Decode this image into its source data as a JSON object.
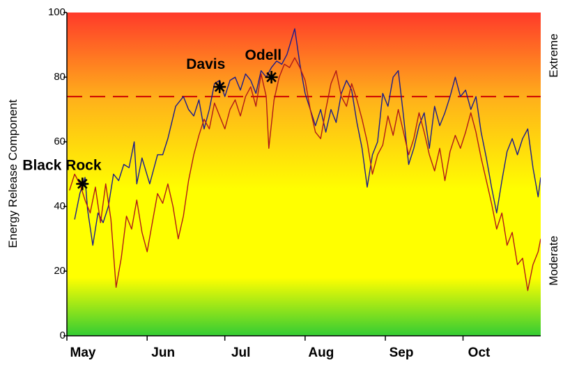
{
  "chart_data": {
    "type": "line",
    "ylabel": "Energy Release Component",
    "ylim": [
      0,
      100
    ],
    "yticks": [
      0,
      20,
      40,
      60,
      80,
      100
    ],
    "xlim": [
      "2000-05-01",
      "2000-10-31"
    ],
    "months": [
      {
        "label": "May",
        "date": "2000-05-01"
      },
      {
        "label": "Jun",
        "date": "2000-06-01"
      },
      {
        "label": "Jul",
        "date": "2000-07-01"
      },
      {
        "label": "Aug",
        "date": "2000-08-01"
      },
      {
        "label": "Sep",
        "date": "2000-09-01"
      },
      {
        "label": "Oct",
        "date": "2000-10-01"
      }
    ],
    "right_labels": {
      "top": "Extreme",
      "bottom": "Moderate"
    },
    "reference_line": {
      "y": 74,
      "color": "#cc0000",
      "style": "dashed"
    },
    "background_gradient": [
      "#ff3a2a",
      "#ffb21a",
      "#ffff00",
      "#ffff00",
      "#33cc33"
    ],
    "annotations": [
      {
        "label": "Black Rock",
        "x": "2000-05-07",
        "y": 47
      },
      {
        "label": "Davis",
        "x": "2000-06-29",
        "y": 77
      },
      {
        "label": "Odell",
        "x": "2000-07-19",
        "y": 80
      }
    ],
    "series": [
      {
        "color": "#1a1a8c",
        "points": [
          [
            "2000-05-04",
            36
          ],
          [
            "2000-05-06",
            44
          ],
          [
            "2000-05-08",
            49
          ],
          [
            "2000-05-09",
            39
          ],
          [
            "2000-05-11",
            28
          ],
          [
            "2000-05-13",
            38
          ],
          [
            "2000-05-15",
            35
          ],
          [
            "2000-05-17",
            40
          ],
          [
            "2000-05-19",
            50
          ],
          [
            "2000-05-21",
            48
          ],
          [
            "2000-05-23",
            53
          ],
          [
            "2000-05-25",
            52
          ],
          [
            "2000-05-27",
            60
          ],
          [
            "2000-05-28",
            47
          ],
          [
            "2000-05-30",
            55
          ],
          [
            "2000-06-02",
            47
          ],
          [
            "2000-06-05",
            56
          ],
          [
            "2000-06-07",
            56
          ],
          [
            "2000-06-09",
            61
          ],
          [
            "2000-06-12",
            71
          ],
          [
            "2000-06-15",
            74
          ],
          [
            "2000-06-17",
            70
          ],
          [
            "2000-06-19",
            68
          ],
          [
            "2000-06-21",
            73
          ],
          [
            "2000-06-23",
            64
          ],
          [
            "2000-06-25",
            70
          ],
          [
            "2000-06-27",
            78
          ],
          [
            "2000-06-29",
            79
          ],
          [
            "2000-07-01",
            74
          ],
          [
            "2000-07-03",
            79
          ],
          [
            "2000-07-05",
            80
          ],
          [
            "2000-07-07",
            76
          ],
          [
            "2000-07-09",
            81
          ],
          [
            "2000-07-11",
            79
          ],
          [
            "2000-07-13",
            75
          ],
          [
            "2000-07-15",
            82
          ],
          [
            "2000-07-17",
            80
          ],
          [
            "2000-07-19",
            83
          ],
          [
            "2000-07-21",
            85
          ],
          [
            "2000-07-23",
            84
          ],
          [
            "2000-07-25",
            87
          ],
          [
            "2000-07-28",
            95
          ],
          [
            "2000-07-30",
            84
          ],
          [
            "2000-08-01",
            75
          ],
          [
            "2000-08-03",
            70
          ],
          [
            "2000-08-05",
            65
          ],
          [
            "2000-08-07",
            70
          ],
          [
            "2000-08-09",
            63
          ],
          [
            "2000-08-11",
            70
          ],
          [
            "2000-08-13",
            66
          ],
          [
            "2000-08-15",
            75
          ],
          [
            "2000-08-17",
            79
          ],
          [
            "2000-08-19",
            76
          ],
          [
            "2000-08-21",
            66
          ],
          [
            "2000-08-23",
            58
          ],
          [
            "2000-08-25",
            46
          ],
          [
            "2000-08-27",
            56
          ],
          [
            "2000-08-29",
            60
          ],
          [
            "2000-08-31",
            75
          ],
          [
            "2000-09-02",
            71
          ],
          [
            "2000-09-04",
            80
          ],
          [
            "2000-09-06",
            82
          ],
          [
            "2000-09-08",
            68
          ],
          [
            "2000-09-10",
            53
          ],
          [
            "2000-09-12",
            58
          ],
          [
            "2000-09-14",
            65
          ],
          [
            "2000-09-16",
            69
          ],
          [
            "2000-09-18",
            58
          ],
          [
            "2000-09-20",
            71
          ],
          [
            "2000-09-22",
            65
          ],
          [
            "2000-09-24",
            69
          ],
          [
            "2000-09-26",
            74
          ],
          [
            "2000-09-28",
            80
          ],
          [
            "2000-09-30",
            74
          ],
          [
            "2000-10-02",
            76
          ],
          [
            "2000-10-04",
            70
          ],
          [
            "2000-10-06",
            74
          ],
          [
            "2000-10-08",
            63
          ],
          [
            "2000-10-10",
            55
          ],
          [
            "2000-10-12",
            46
          ],
          [
            "2000-10-14",
            38
          ],
          [
            "2000-10-16",
            48
          ],
          [
            "2000-10-18",
            57
          ],
          [
            "2000-10-20",
            61
          ],
          [
            "2000-10-22",
            56
          ],
          [
            "2000-10-24",
            61
          ],
          [
            "2000-10-26",
            64
          ],
          [
            "2000-10-28",
            52
          ],
          [
            "2000-10-30",
            43
          ],
          [
            "2000-10-31",
            49
          ]
        ]
      },
      {
        "color": "#b01818",
        "points": [
          [
            "2000-05-02",
            45
          ],
          [
            "2000-05-04",
            50
          ],
          [
            "2000-05-06",
            47
          ],
          [
            "2000-05-08",
            42
          ],
          [
            "2000-05-10",
            38
          ],
          [
            "2000-05-12",
            46
          ],
          [
            "2000-05-14",
            35
          ],
          [
            "2000-05-16",
            47
          ],
          [
            "2000-05-18",
            36
          ],
          [
            "2000-05-20",
            15
          ],
          [
            "2000-05-22",
            24
          ],
          [
            "2000-05-24",
            37
          ],
          [
            "2000-05-26",
            33
          ],
          [
            "2000-05-28",
            42
          ],
          [
            "2000-05-30",
            32
          ],
          [
            "2000-06-01",
            26
          ],
          [
            "2000-06-03",
            35
          ],
          [
            "2000-06-05",
            44
          ],
          [
            "2000-06-07",
            41
          ],
          [
            "2000-06-09",
            47
          ],
          [
            "2000-06-11",
            40
          ],
          [
            "2000-06-13",
            30
          ],
          [
            "2000-06-15",
            37
          ],
          [
            "2000-06-17",
            48
          ],
          [
            "2000-06-19",
            56
          ],
          [
            "2000-06-21",
            62
          ],
          [
            "2000-06-23",
            67
          ],
          [
            "2000-06-25",
            64
          ],
          [
            "2000-06-27",
            72
          ],
          [
            "2000-06-29",
            68
          ],
          [
            "2000-07-01",
            64
          ],
          [
            "2000-07-03",
            70
          ],
          [
            "2000-07-05",
            73
          ],
          [
            "2000-07-07",
            68
          ],
          [
            "2000-07-09",
            74
          ],
          [
            "2000-07-11",
            77
          ],
          [
            "2000-07-13",
            71
          ],
          [
            "2000-07-15",
            81
          ],
          [
            "2000-07-17",
            74
          ],
          [
            "2000-07-18",
            58
          ],
          [
            "2000-07-20",
            73
          ],
          [
            "2000-07-22",
            80
          ],
          [
            "2000-07-24",
            84
          ],
          [
            "2000-07-26",
            83
          ],
          [
            "2000-07-28",
            86
          ],
          [
            "2000-07-30",
            83
          ],
          [
            "2000-08-01",
            79
          ],
          [
            "2000-08-03",
            70
          ],
          [
            "2000-08-05",
            63
          ],
          [
            "2000-08-07",
            61
          ],
          [
            "2000-08-09",
            70
          ],
          [
            "2000-08-11",
            78
          ],
          [
            "2000-08-13",
            82
          ],
          [
            "2000-08-15",
            74
          ],
          [
            "2000-08-17",
            71
          ],
          [
            "2000-08-19",
            78
          ],
          [
            "2000-08-21",
            73
          ],
          [
            "2000-08-23",
            67
          ],
          [
            "2000-08-25",
            60
          ],
          [
            "2000-08-27",
            50
          ],
          [
            "2000-08-29",
            56
          ],
          [
            "2000-08-31",
            59
          ],
          [
            "2000-09-02",
            68
          ],
          [
            "2000-09-04",
            62
          ],
          [
            "2000-09-06",
            70
          ],
          [
            "2000-09-08",
            63
          ],
          [
            "2000-09-10",
            56
          ],
          [
            "2000-09-12",
            61
          ],
          [
            "2000-09-14",
            69
          ],
          [
            "2000-09-16",
            63
          ],
          [
            "2000-09-18",
            56
          ],
          [
            "2000-09-20",
            51
          ],
          [
            "2000-09-22",
            58
          ],
          [
            "2000-09-24",
            48
          ],
          [
            "2000-09-26",
            57
          ],
          [
            "2000-09-28",
            62
          ],
          [
            "2000-09-30",
            58
          ],
          [
            "2000-10-02",
            63
          ],
          [
            "2000-10-04",
            69
          ],
          [
            "2000-10-06",
            63
          ],
          [
            "2000-10-08",
            55
          ],
          [
            "2000-10-10",
            48
          ],
          [
            "2000-10-12",
            41
          ],
          [
            "2000-10-14",
            33
          ],
          [
            "2000-10-16",
            38
          ],
          [
            "2000-10-18",
            28
          ],
          [
            "2000-10-20",
            32
          ],
          [
            "2000-10-22",
            22
          ],
          [
            "2000-10-24",
            24
          ],
          [
            "2000-10-26",
            14
          ],
          [
            "2000-10-28",
            22
          ],
          [
            "2000-10-30",
            26
          ],
          [
            "2000-10-31",
            30
          ]
        ]
      }
    ]
  }
}
